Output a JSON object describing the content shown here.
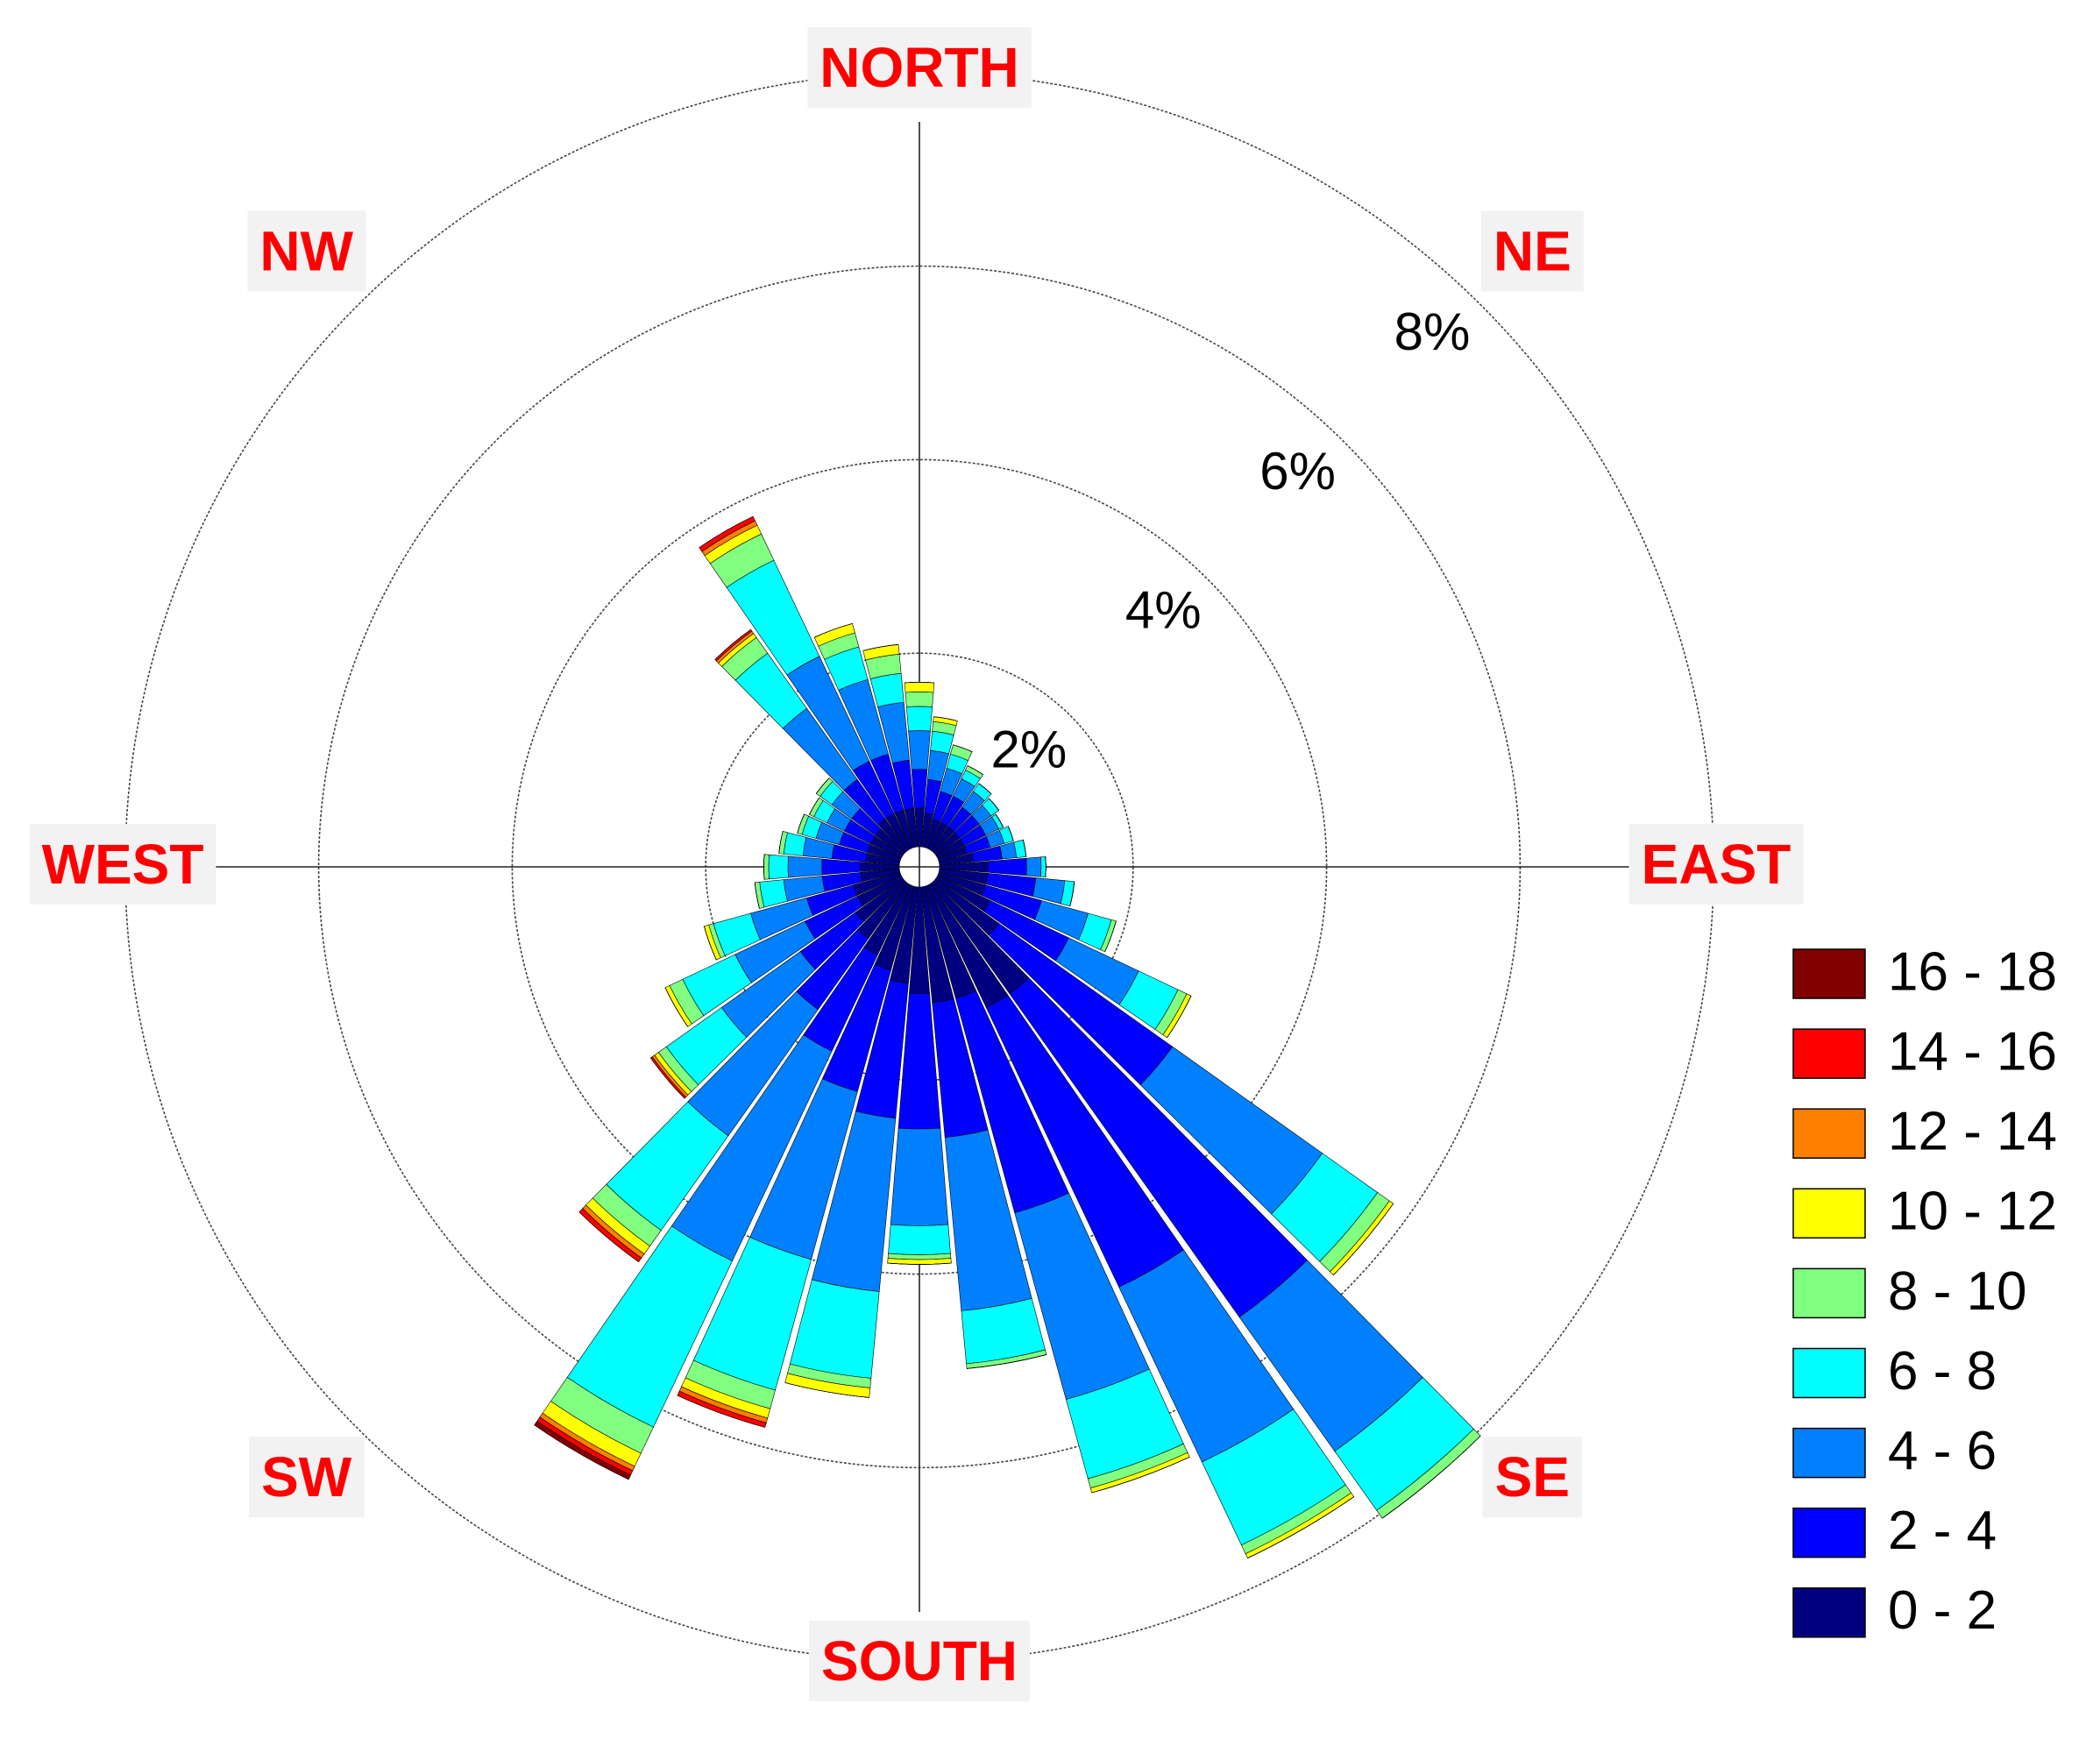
{
  "chart_data": {
    "type": "windrose",
    "theta": [
      0,
      10,
      20,
      30,
      40,
      50,
      60,
      70,
      80,
      90,
      100,
      110,
      120,
      130,
      140,
      150,
      160,
      170,
      180,
      190,
      200,
      210,
      220,
      230,
      240,
      250,
      260,
      270,
      280,
      290,
      300,
      310,
      320,
      330,
      340,
      350
    ],
    "compass_labels": [
      "NORTH",
      "NE",
      "EAST",
      "SE",
      "SOUTH",
      "SW",
      "WEST",
      "NW"
    ],
    "rlim": [
      0,
      8
    ],
    "rticks": [
      {
        "value": 2,
        "label": "2%"
      },
      {
        "value": 4,
        "label": "4%"
      },
      {
        "value": 6,
        "label": "6%"
      },
      {
        "value": 8,
        "label": "8%"
      }
    ],
    "series": [
      {
        "name": "0 - 2",
        "color": "#000080",
        "values": [
          0.4,
          0.35,
          0.3,
          0.3,
          0.3,
          0.3,
          0.3,
          0.3,
          0.35,
          0.5,
          0.5,
          0.5,
          0.6,
          0.8,
          1.4,
          1.4,
          1.2,
          1.2,
          1.1,
          1.0,
          0.9,
          0.8,
          0.7,
          0.6,
          0.5,
          0.5,
          0.4,
          0.4,
          0.35,
          0.35,
          0.35,
          0.35,
          0.4,
          0.4,
          0.4,
          0.4
        ]
      },
      {
        "name": "2 - 4",
        "color": "#0000ff",
        "values": [
          0.4,
          0.35,
          0.3,
          0.3,
          0.25,
          0.25,
          0.25,
          0.25,
          0.3,
          0.4,
          0.5,
          0.6,
          0.9,
          2.2,
          4.1,
          3.2,
          2.3,
          1.4,
          1.4,
          1.4,
          1.3,
          1.1,
          0.9,
          0.7,
          0.6,
          0.5,
          0.4,
          0.4,
          0.35,
          0.3,
          0.3,
          0.3,
          0.5,
          0.6,
          0.6,
          0.5
        ]
      },
      {
        "name": "4 - 6",
        "color": "#0080ff",
        "values": [
          0.4,
          0.3,
          0.25,
          0.2,
          0.2,
          0.15,
          0.15,
          0.15,
          0.15,
          0.15,
          0.3,
          0.5,
          0.8,
          1.9,
          1.7,
          2.0,
          2.0,
          1.8,
          1.0,
          1.8,
          1.8,
          2.4,
          1.6,
          1.0,
          0.8,
          0.6,
          0.4,
          0.35,
          0.3,
          0.25,
          0.2,
          0.25,
          0.9,
          1.2,
          0.8,
          0.6
        ]
      },
      {
        "name": "6 - 8",
        "color": "#00ffff",
        "values": [
          0.25,
          0.2,
          0.15,
          0.1,
          0.1,
          0.1,
          0.05,
          0.1,
          0.1,
          0.05,
          0.1,
          0.25,
          0.45,
          0.7,
          0.75,
          0.95,
          0.85,
          0.55,
          0.3,
          0.9,
          1.4,
          1.9,
          1.2,
          0.7,
          0.6,
          0.4,
          0.25,
          0.2,
          0.2,
          0.15,
          0.15,
          0.15,
          0.7,
          1.1,
          0.35,
          0.3
        ]
      },
      {
        "name": "8 - 10",
        "color": "#80ff80",
        "values": [
          0.15,
          0.1,
          0.1,
          0.05,
          0,
          0,
          0,
          0,
          0,
          0,
          0,
          0.05,
          0.1,
          0.15,
          0.1,
          0.1,
          0.1,
          0.05,
          0.05,
          0.1,
          0.2,
          0.3,
          0.2,
          0.1,
          0.15,
          0.05,
          0.05,
          0.05,
          0.05,
          0.05,
          0.05,
          0.05,
          0.2,
          0.3,
          0.15,
          0.2
        ]
      },
      {
        "name": "10 - 12",
        "color": "#ffff00",
        "values": [
          0.1,
          0.05,
          0,
          0,
          0,
          0,
          0,
          0,
          0,
          0,
          0,
          0,
          0.05,
          0.05,
          0,
          0.05,
          0.05,
          0,
          0.05,
          0.1,
          0.1,
          0.15,
          0.1,
          0.05,
          0.05,
          0.05,
          0,
          0,
          0,
          0,
          0,
          0,
          0.05,
          0.1,
          0.1,
          0.1
        ]
      },
      {
        "name": "12 - 14",
        "color": "#ff8000",
        "values": [
          0,
          0,
          0,
          0,
          0,
          0,
          0,
          0,
          0,
          0,
          0,
          0,
          0,
          0,
          0,
          0,
          0,
          0,
          0,
          0,
          0.05,
          0.05,
          0.05,
          0.03,
          0,
          0,
          0,
          0,
          0,
          0,
          0,
          0,
          0.03,
          0.05,
          0,
          0
        ]
      },
      {
        "name": "14 - 16",
        "color": "#ff0000",
        "values": [
          0,
          0,
          0,
          0,
          0,
          0,
          0,
          0,
          0,
          0,
          0,
          0,
          0,
          0,
          0,
          0,
          0,
          0,
          0,
          0,
          0.05,
          0.05,
          0.05,
          0.02,
          0,
          0,
          0,
          0,
          0,
          0,
          0,
          0,
          0.02,
          0.05,
          0,
          0
        ]
      },
      {
        "name": "16 - 18",
        "color": "#800000",
        "values": [
          0,
          0,
          0,
          0,
          0,
          0,
          0,
          0,
          0,
          0,
          0,
          0,
          0,
          0,
          0,
          0,
          0,
          0,
          0,
          0,
          0,
          0.05,
          0,
          0,
          0,
          0,
          0,
          0,
          0,
          0,
          0,
          0,
          0,
          0,
          0,
          0
        ]
      }
    ]
  }
}
